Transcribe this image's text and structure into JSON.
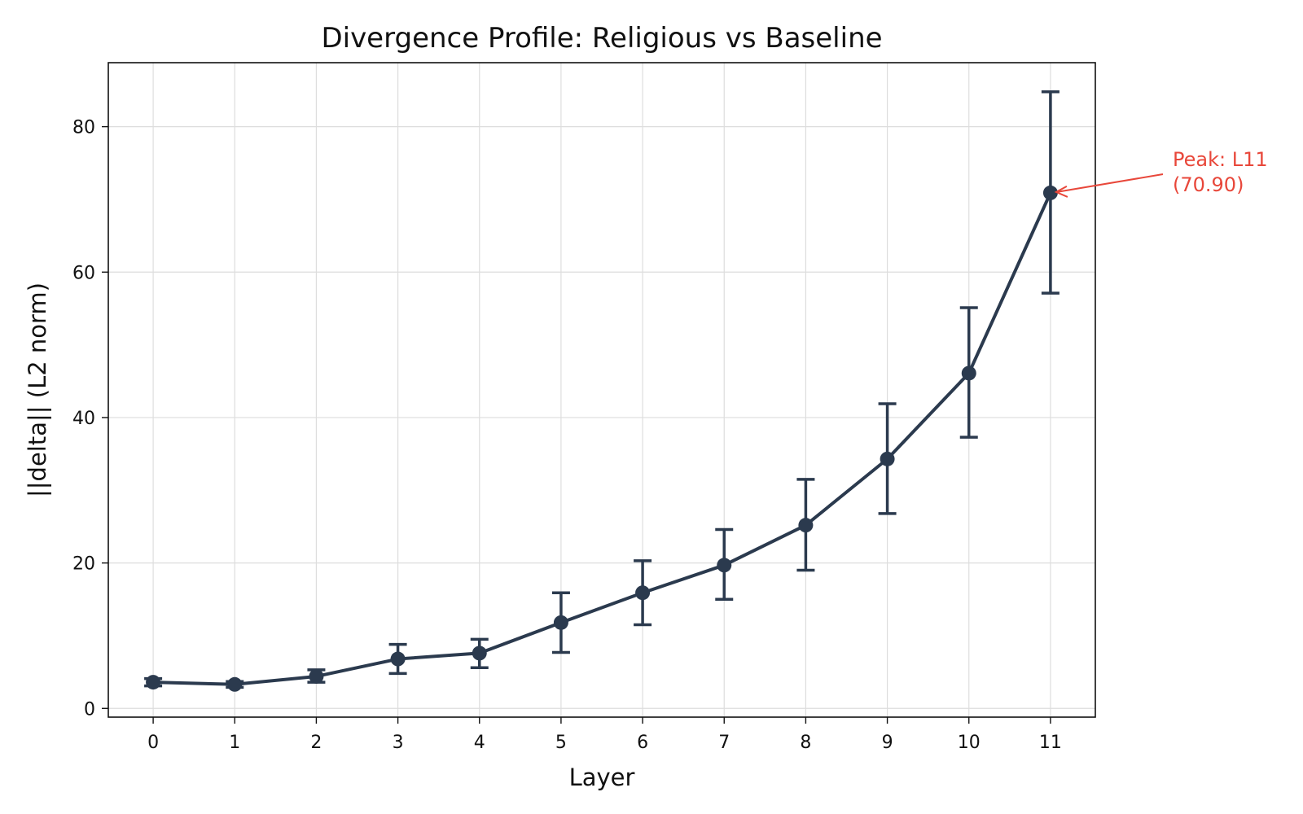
{
  "chart_data": {
    "type": "line",
    "title": "Divergence Profile: Religious vs Baseline",
    "xlabel": "Layer",
    "ylabel": "||delta|| (L2 norm)",
    "x": [
      0,
      1,
      2,
      3,
      4,
      5,
      6,
      7,
      8,
      9,
      10,
      11
    ],
    "x_tick_labels": [
      "0",
      "1",
      "2",
      "3",
      "4",
      "5",
      "6",
      "7",
      "8",
      "9",
      "10",
      "11"
    ],
    "y_ticks": [
      0,
      20,
      40,
      60,
      80
    ],
    "y_tick_labels": [
      "0",
      "20",
      "40",
      "60",
      "80"
    ],
    "xlim": [
      -0.55,
      11.55
    ],
    "ylim": [
      -1.2,
      88.8
    ],
    "grid": true,
    "series": [
      {
        "values": [
          3.6,
          3.3,
          4.4,
          6.8,
          7.6,
          11.8,
          15.9,
          19.7,
          25.2,
          34.3,
          46.1,
          70.9
        ],
        "err_low": [
          3.1,
          2.9,
          3.6,
          4.8,
          5.6,
          7.7,
          11.5,
          15.0,
          19.0,
          26.8,
          37.3,
          57.1
        ],
        "err_high": [
          4.1,
          3.7,
          5.3,
          8.8,
          9.5,
          15.9,
          20.3,
          24.6,
          31.5,
          41.9,
          55.1,
          84.8
        ],
        "color": "#2b3a4e"
      }
    ],
    "annotation": {
      "line1": "Peak: L11",
      "line2": "(70.90)",
      "x": 11,
      "y": 70.9,
      "color": "#e8473a"
    }
  }
}
